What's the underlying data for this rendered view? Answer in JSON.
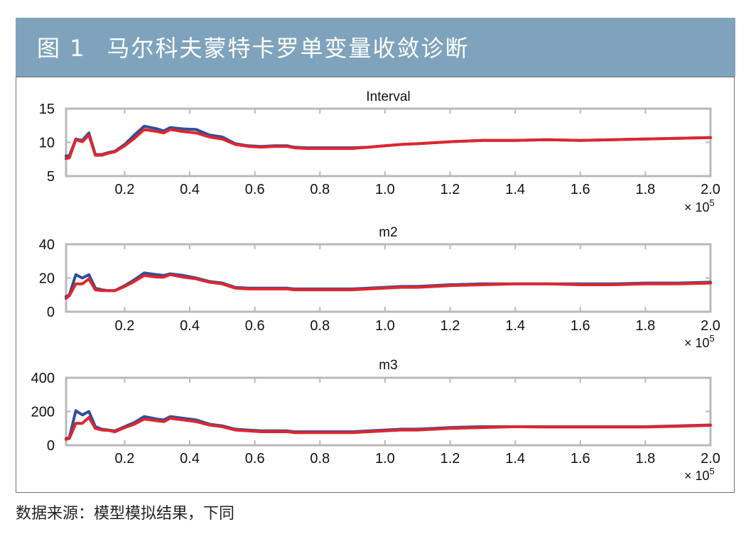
{
  "figure": {
    "number": "图 1",
    "title": "马尔科夫蒙特卡罗单变量收敛诊断"
  },
  "source_note": "数据来源：模型模拟结果，下同",
  "colors": {
    "banner": "#7fa3bc",
    "series_blue": "#2f4f9a",
    "series_red": "#e0262e",
    "axis": "#b9b9b9"
  },
  "chart_data": [
    {
      "type": "line",
      "title": "Interval",
      "xlim": [
        0.02,
        2.0
      ],
      "ylim": [
        5,
        15
      ],
      "yticks": [
        5,
        10,
        15
      ],
      "xticks": [
        0.2,
        0.4,
        0.6,
        0.8,
        1.0,
        1.2,
        1.4,
        1.6,
        1.8,
        2.0
      ],
      "xtick_labels": [
        "0.2",
        "0.4",
        "0.6",
        "0.8",
        "1.0",
        "1.2",
        "1.4",
        "1.6",
        "1.8",
        "2.0"
      ],
      "ytick_labels": [
        "5",
        "10",
        "15"
      ],
      "x_multiplier": "× 10",
      "x_multiplier_exp": "5",
      "x": [
        0.02,
        0.03,
        0.05,
        0.07,
        0.09,
        0.11,
        0.13,
        0.15,
        0.17,
        0.2,
        0.23,
        0.26,
        0.3,
        0.32,
        0.34,
        0.38,
        0.42,
        0.46,
        0.5,
        0.54,
        0.58,
        0.62,
        0.66,
        0.7,
        0.72,
        0.76,
        0.8,
        0.85,
        0.9,
        0.95,
        1.0,
        1.05,
        1.1,
        1.2,
        1.3,
        1.4,
        1.5,
        1.6,
        1.7,
        1.8,
        1.9,
        2.0
      ],
      "series": [
        {
          "name": "blue",
          "values": [
            8.0,
            8.0,
            10.5,
            10.3,
            11.4,
            8.2,
            8.2,
            8.5,
            8.7,
            9.7,
            11.1,
            12.4,
            12.0,
            11.7,
            12.2,
            12.0,
            11.9,
            11.1,
            10.8,
            9.8,
            9.5,
            9.4,
            9.5,
            9.5,
            9.3,
            9.2,
            9.2,
            9.2,
            9.2,
            9.3,
            9.5,
            9.7,
            9.8,
            10.1,
            10.3,
            10.3,
            10.4,
            10.3,
            10.4,
            10.5,
            10.6,
            10.7
          ]
        },
        {
          "name": "red",
          "values": [
            7.6,
            7.7,
            10.4,
            10.1,
            11.1,
            8.1,
            8.1,
            8.4,
            8.6,
            9.5,
            10.6,
            11.9,
            11.6,
            11.4,
            11.9,
            11.6,
            11.4,
            10.8,
            10.5,
            9.7,
            9.4,
            9.3,
            9.4,
            9.4,
            9.2,
            9.1,
            9.1,
            9.1,
            9.1,
            9.3,
            9.5,
            9.7,
            9.8,
            10.1,
            10.3,
            10.3,
            10.4,
            10.3,
            10.4,
            10.5,
            10.6,
            10.7
          ]
        }
      ]
    },
    {
      "type": "line",
      "title": "m2",
      "xlim": [
        0.02,
        2.0
      ],
      "ylim": [
        0,
        40
      ],
      "yticks": [
        0,
        20,
        40
      ],
      "xticks": [
        0.2,
        0.4,
        0.6,
        0.8,
        1.0,
        1.2,
        1.4,
        1.6,
        1.8,
        2.0
      ],
      "xtick_labels": [
        "0.2",
        "0.4",
        "0.6",
        "0.8",
        "1.0",
        "1.2",
        "1.4",
        "1.6",
        "1.8",
        "2.0"
      ],
      "ytick_labels": [
        "0",
        "20",
        "40"
      ],
      "x_multiplier": "× 10",
      "x_multiplier_exp": "5",
      "x": [
        0.02,
        0.03,
        0.05,
        0.07,
        0.09,
        0.11,
        0.13,
        0.15,
        0.17,
        0.2,
        0.23,
        0.26,
        0.3,
        0.32,
        0.34,
        0.38,
        0.42,
        0.46,
        0.5,
        0.54,
        0.58,
        0.62,
        0.66,
        0.7,
        0.72,
        0.76,
        0.8,
        0.85,
        0.9,
        0.95,
        1.0,
        1.05,
        1.1,
        1.2,
        1.3,
        1.4,
        1.5,
        1.6,
        1.7,
        1.8,
        1.9,
        2.0
      ],
      "series": [
        {
          "name": "blue",
          "values": [
            9,
            10,
            22,
            20,
            22,
            14,
            13,
            12.5,
            12.5,
            15.5,
            19,
            23,
            22,
            21.5,
            22.5,
            21.5,
            20,
            18,
            17,
            14.5,
            14,
            14,
            14,
            14,
            13.5,
            13.5,
            13.5,
            13.5,
            13.5,
            14,
            14.5,
            15,
            15,
            16,
            16.5,
            16.5,
            16.5,
            16.5,
            16.5,
            17,
            17,
            17.5
          ]
        },
        {
          "name": "red",
          "values": [
            8,
            9.5,
            16.5,
            16.5,
            19.5,
            13,
            12.5,
            12.5,
            12.5,
            15,
            18,
            21.5,
            20.5,
            20.5,
            22,
            20.5,
            19.5,
            17.5,
            16.5,
            14,
            13.5,
            13.5,
            13.5,
            13.5,
            13,
            13,
            13,
            13,
            13,
            13.5,
            14,
            14.5,
            14.5,
            15.5,
            16,
            16.5,
            16.5,
            16,
            16,
            16.5,
            16.5,
            17
          ]
        }
      ]
    },
    {
      "type": "line",
      "title": "m3",
      "xlim": [
        0.02,
        2.0
      ],
      "ylim": [
        0,
        400
      ],
      "yticks": [
        0,
        200,
        400
      ],
      "xticks": [
        0.2,
        0.4,
        0.6,
        0.8,
        1.0,
        1.2,
        1.4,
        1.6,
        1.8,
        2.0
      ],
      "xtick_labels": [
        "0.2",
        "0.4",
        "0.6",
        "0.8",
        "1.0",
        "1.2",
        "1.4",
        "1.6",
        "1.8",
        "2.0"
      ],
      "ytick_labels": [
        "0",
        "200",
        "400"
      ],
      "x_multiplier": "× 10",
      "x_multiplier_exp": "5",
      "x": [
        0.02,
        0.03,
        0.05,
        0.07,
        0.09,
        0.11,
        0.13,
        0.15,
        0.17,
        0.2,
        0.23,
        0.26,
        0.3,
        0.32,
        0.34,
        0.38,
        0.42,
        0.46,
        0.5,
        0.54,
        0.58,
        0.62,
        0.66,
        0.7,
        0.72,
        0.76,
        0.8,
        0.85,
        0.9,
        0.95,
        1.0,
        1.05,
        1.1,
        1.2,
        1.3,
        1.4,
        1.5,
        1.6,
        1.7,
        1.8,
        1.9,
        2.0
      ],
      "series": [
        {
          "name": "blue",
          "values": [
            40,
            45,
            205,
            180,
            200,
            110,
            95,
            90,
            85,
            110,
            135,
            170,
            155,
            150,
            170,
            160,
            150,
            125,
            115,
            95,
            90,
            85,
            85,
            85,
            80,
            80,
            80,
            80,
            80,
            85,
            90,
            95,
            95,
            105,
            110,
            110,
            110,
            110,
            110,
            110,
            115,
            120
          ]
        },
        {
          "name": "red",
          "values": [
            35,
            40,
            130,
            130,
            165,
            100,
            90,
            88,
            80,
            105,
            125,
            155,
            145,
            140,
            160,
            150,
            140,
            120,
            110,
            90,
            85,
            80,
            80,
            80,
            75,
            75,
            75,
            75,
            75,
            80,
            85,
            90,
            90,
            100,
            105,
            110,
            108,
            108,
            108,
            108,
            112,
            118
          ]
        }
      ]
    }
  ]
}
